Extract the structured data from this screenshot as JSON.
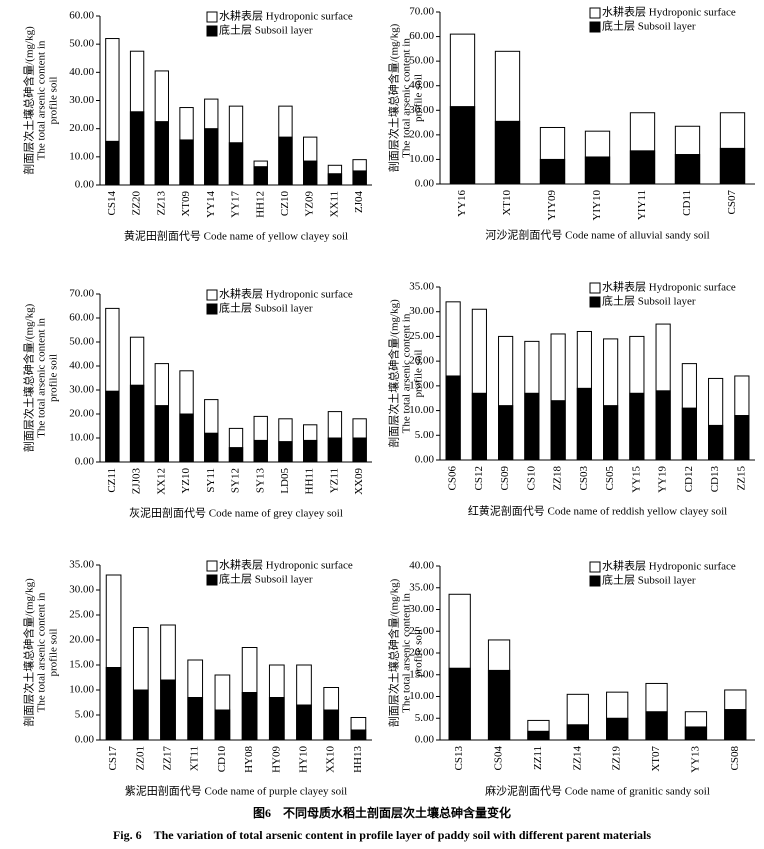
{
  "chart_data": [
    {
      "type": "bar",
      "ylabel": [
        "剖面层次土壤总砷含量/(mg/kg)",
        "The total arsenic content in",
        "profile soil"
      ],
      "xlabel": "黄泥田剖面代号 Code name of yellow clayey soil",
      "categories": [
        "CS14",
        "ZZ20",
        "ZZ13",
        "XT09",
        "YY14",
        "YY17",
        "HH12",
        "CZ10",
        "YZ09",
        "XX11",
        "ZJ04"
      ],
      "series": [
        {
          "name": "水耕表层 Hydroponic surface",
          "color": "#ffffff",
          "values": [
            52,
            47.5,
            40.5,
            27.5,
            30.5,
            28,
            8.5,
            28,
            17,
            7,
            9
          ]
        },
        {
          "name": "底土层 Subsoil layer",
          "color": "#000000",
          "values": [
            15.5,
            26,
            22.5,
            16,
            20,
            15,
            6.5,
            17,
            8.5,
            4,
            5
          ]
        }
      ],
      "ylim": [
        0,
        60
      ],
      "yticks": [
        {
          "value": 0,
          "label": "0.00"
        },
        {
          "value": 10,
          "label": "10.00"
        },
        {
          "value": 20,
          "label": "20.00"
        },
        {
          "value": 30,
          "label": "30.00"
        },
        {
          "value": 40,
          "label": "40.00"
        },
        {
          "value": 50,
          "label": "50.00"
        },
        {
          "value": 60,
          "label": "60.00"
        }
      ]
    },
    {
      "type": "bar",
      "ylabel": [
        "剖面层次土壤总砷含量/(mg/kg)",
        "The total arsenic content in",
        "profile soil"
      ],
      "xlabel": "河沙泥剖面代号 Code name of alluvial sandy soil",
      "categories": [
        "YY16",
        "XT10",
        "YIY09",
        "YIY10",
        "YIY11",
        "CD11",
        "CS07"
      ],
      "series": [
        {
          "name": "水耕表层 Hydroponic surface",
          "color": "#ffffff",
          "values": [
            61,
            54,
            23,
            21.5,
            29,
            23.5,
            29
          ]
        },
        {
          "name": "底土层 Subsoil layer",
          "color": "#000000",
          "values": [
            31.5,
            25.5,
            10,
            11,
            13.5,
            12,
            14.5
          ]
        }
      ],
      "ylim": [
        0,
        70
      ],
      "yticks": [
        {
          "value": 0,
          "label": "0.00"
        },
        {
          "value": 10,
          "label": "10.00"
        },
        {
          "value": 20,
          "label": "20.00"
        },
        {
          "value": 30,
          "label": "30.00"
        },
        {
          "value": 40,
          "label": "40.00"
        },
        {
          "value": 50,
          "label": "50.00"
        },
        {
          "value": 60,
          "label": "60.00"
        },
        {
          "value": 70,
          "label": "70.00"
        }
      ]
    },
    {
      "type": "bar",
      "ylabel": [
        "剖面层次土壤总砷含量/(mg/kg)",
        "The total arsenic content in",
        "profile soil"
      ],
      "xlabel": "灰泥田剖面代号 Code name of grey clayey soil",
      "categories": [
        "CZ11",
        "ZJJ03",
        "XX12",
        "YZ10",
        "SY11",
        "SY12",
        "SY13",
        "LD05",
        "HH11",
        "YZ11",
        "XX09"
      ],
      "series": [
        {
          "name": "水耕表层 Hydroponic surface",
          "color": "#ffffff",
          "values": [
            64,
            52,
            41,
            38,
            26,
            14,
            19,
            18,
            15.5,
            21,
            18
          ]
        },
        {
          "name": "底土层 Subsoil layer",
          "color": "#000000",
          "values": [
            29.5,
            32,
            23.5,
            20,
            12,
            6,
            9,
            8.5,
            9,
            10,
            10
          ]
        }
      ],
      "ylim": [
        0,
        70
      ],
      "yticks": [
        {
          "value": 0,
          "label": "0.00"
        },
        {
          "value": 10,
          "label": "10.00"
        },
        {
          "value": 20,
          "label": "20.00"
        },
        {
          "value": 30,
          "label": "30.00"
        },
        {
          "value": 40,
          "label": "40.00"
        },
        {
          "value": 50,
          "label": "50.00"
        },
        {
          "value": 60,
          "label": "60.00"
        },
        {
          "value": 70,
          "label": "70.00"
        }
      ]
    },
    {
      "type": "bar",
      "ylabel": [
        "剖面层次土壤总砷含量/(mg/kg)",
        "The total arsenic content in",
        "profile soil"
      ],
      "xlabel": "红黄泥剖面代号 Code name of reddish yellow clayey soil",
      "categories": [
        "CS06",
        "CS12",
        "CS09",
        "CS10",
        "ZZ18",
        "CS03",
        "CS05",
        "YY15",
        "YY19",
        "CD12",
        "CD13",
        "ZZ15"
      ],
      "series": [
        {
          "name": "水耕表层 Hydroponic surface",
          "color": "#ffffff",
          "values": [
            32,
            30.5,
            25,
            24,
            25.5,
            26,
            24.5,
            25,
            27.5,
            19.5,
            16.5,
            17
          ]
        },
        {
          "name": "底土层 Subsoil layer",
          "color": "#000000",
          "values": [
            17,
            13.5,
            11,
            13.5,
            12,
            14.5,
            11,
            13.5,
            14,
            10.5,
            7,
            9
          ]
        }
      ],
      "ylim": [
        0,
        35
      ],
      "yticks": [
        {
          "value": 0,
          "label": "0.00"
        },
        {
          "value": 5,
          "label": "5.00"
        },
        {
          "value": 10,
          "label": "10.00"
        },
        {
          "value": 15,
          "label": "15.00"
        },
        {
          "value": 20,
          "label": "20.00"
        },
        {
          "value": 25,
          "label": "25.00"
        },
        {
          "value": 30,
          "label": "30.00"
        },
        {
          "value": 35,
          "label": "35.00"
        }
      ]
    },
    {
      "type": "bar",
      "ylabel": [
        "剖面层次土壤总砷含量/(mg/kg)",
        "The total arsenic content in",
        "profile soil"
      ],
      "xlabel": "紫泥田剖面代号 Code name of purple clayey soil",
      "categories": [
        "CS17",
        "ZZ01",
        "ZZ17",
        "XT11",
        "CD10",
        "HY08",
        "HY09",
        "HY10",
        "XX10",
        "HH13"
      ],
      "series": [
        {
          "name": "水耕表层 Hydroponic surface",
          "color": "#ffffff",
          "values": [
            33,
            22.5,
            23,
            16,
            13,
            18.5,
            15,
            15,
            10.5,
            4.5
          ]
        },
        {
          "name": "底土层 Subsoil layer",
          "color": "#000000",
          "values": [
            14.5,
            10,
            12,
            8.5,
            6,
            9.5,
            8.5,
            7,
            6,
            2
          ]
        }
      ],
      "ylim": [
        0,
        35
      ],
      "yticks": [
        {
          "value": 0,
          "label": "0.00"
        },
        {
          "value": 5,
          "label": "5.00"
        },
        {
          "value": 10,
          "label": "10.00"
        },
        {
          "value": 15,
          "label": "15.00"
        },
        {
          "value": 20,
          "label": "20.00"
        },
        {
          "value": 25,
          "label": "25.00"
        },
        {
          "value": 30,
          "label": "30.00"
        },
        {
          "value": 35,
          "label": "35.00"
        }
      ]
    },
    {
      "type": "bar",
      "ylabel": [
        "剖面层次土壤总砷含量/(mg/kg)",
        "The total arsenic content in",
        "profile soil"
      ],
      "xlabel": "麻沙泥剖面代号 Code name of granitic sandy soil",
      "categories": [
        "CS13",
        "CS04",
        "ZZ11",
        "ZZ14",
        "ZZ19",
        "XT07",
        "YY13",
        "CS08"
      ],
      "series": [
        {
          "name": "水耕表层 Hydroponic surface",
          "color": "#ffffff",
          "values": [
            33.5,
            23,
            4.5,
            10.5,
            11,
            13,
            6.5,
            11.5
          ]
        },
        {
          "name": "底土层 Subsoil layer",
          "color": "#000000",
          "values": [
            16.5,
            16,
            2,
            3.5,
            5,
            6.5,
            3,
            7
          ]
        }
      ],
      "ylim": [
        0,
        40
      ],
      "yticks": [
        {
          "value": 0,
          "label": "0.00"
        },
        {
          "value": 5,
          "label": "5.00"
        },
        {
          "value": 10,
          "label": "10.00"
        },
        {
          "value": 15,
          "label": "15.00"
        },
        {
          "value": 20,
          "label": "20.00"
        },
        {
          "value": 25,
          "label": "25.00"
        },
        {
          "value": 30,
          "label": "30.00"
        },
        {
          "value": 35,
          "label": "35.00"
        },
        {
          "value": 40,
          "label": "40.00"
        }
      ]
    }
  ],
  "caption": {
    "zh": "图6　不同母质水稻土剖面层次土壤总砷含量变化",
    "en": "Fig. 6　The variation of total arsenic content in profile layer of paddy soil with different parent materials"
  }
}
